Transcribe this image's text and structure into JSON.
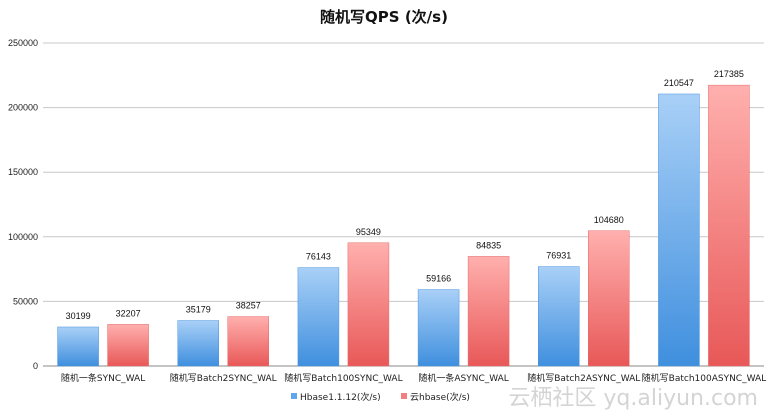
{
  "chart_data": {
    "type": "bar",
    "title": "随机写QPS (次/s)",
    "categories": [
      "随机一条SYNC_WAL",
      "随机写Batch2SYNC_WAL",
      "随机写Batch100SYNC_WAL",
      "随机一条ASYNC_WAL",
      "随机写Batch2ASYNC_WAL",
      "随机写Batch100ASYNC_WAL"
    ],
    "series": [
      {
        "name": "Hbase1.1.12(次/s)",
        "values": [
          30199,
          35179,
          76143,
          59166,
          76931,
          210547
        ],
        "color": "#5fa6ec"
      },
      {
        "name": "云hbase(次/s)",
        "values": [
          32207,
          38257,
          95349,
          84835,
          104680,
          217385
        ],
        "color": "#f47f7f"
      }
    ],
    "ylim": [
      0,
      250000
    ],
    "yticks": [
      0,
      50000,
      100000,
      150000,
      200000,
      250000
    ],
    "grid": true,
    "legend_position": "bottom-center",
    "xlabel": "",
    "ylabel": ""
  },
  "watermark": "云栖社区 yq.aliyun.com"
}
